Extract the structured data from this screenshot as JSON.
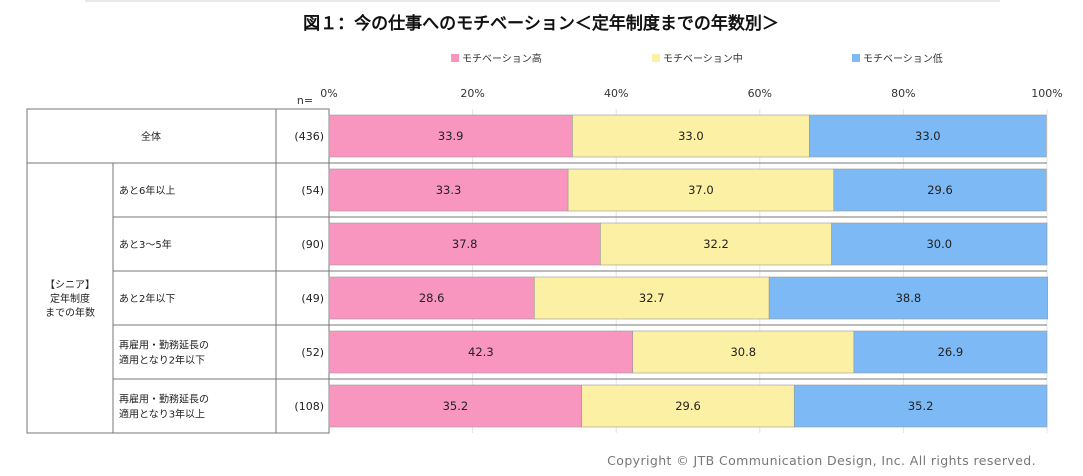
{
  "chart_data": {
    "type": "bar",
    "orientation": "horizontal",
    "stacked": true,
    "percent": true,
    "title": "図１：今の仕事へのモチベーション＜定年制度までの年数別＞",
    "xlim": [
      0,
      100
    ],
    "x_ticks": [
      "0%",
      "20%",
      "40%",
      "60%",
      "80%",
      "100%"
    ],
    "n_label": "n=",
    "legend_position": "top",
    "series": [
      {
        "name": "モチベーション高",
        "color": "#F996BF",
        "values": [
          33.9,
          33.3,
          37.8,
          28.6,
          42.3,
          35.2
        ]
      },
      {
        "name": "モチベーション中",
        "color": "#FCF0A4",
        "values": [
          33.0,
          37.0,
          32.2,
          32.7,
          30.8,
          29.6
        ]
      },
      {
        "name": "モチベーション低",
        "color": "#7DB9F5",
        "values": [
          33.0,
          29.6,
          30.0,
          38.8,
          26.9,
          35.2
        ]
      }
    ],
    "value_labels": [
      [
        "33.9",
        "33.0",
        "33.0"
      ],
      [
        "33.3",
        "37.0",
        "29.6"
      ],
      [
        "37.8",
        "32.2",
        "30.0"
      ],
      [
        "28.6",
        "32.7",
        "38.8"
      ],
      [
        "42.3",
        "30.8",
        "26.9"
      ],
      [
        "35.2",
        "29.6",
        "35.2"
      ]
    ],
    "group_label": [
      "【シニア】",
      "定年制度",
      "までの年数"
    ],
    "rows": [
      {
        "lines": [
          "全体"
        ],
        "n": "(436)"
      },
      {
        "lines": [
          "あと6年以上"
        ],
        "n": "(54)"
      },
      {
        "lines": [
          "あと3～5年"
        ],
        "n": "(90)"
      },
      {
        "lines": [
          "あと2年以下"
        ],
        "n": "(49)"
      },
      {
        "lines": [
          "再雇用・勤務延長の",
          "適用となり2年以下"
        ],
        "n": "(52)"
      },
      {
        "lines": [
          "再雇用・勤務延長の",
          "適用となり3年以上"
        ],
        "n": "(108)"
      }
    ]
  },
  "footer": {
    "copyright": "Copyright © JTB Communication Design, Inc. All rights reserved."
  }
}
